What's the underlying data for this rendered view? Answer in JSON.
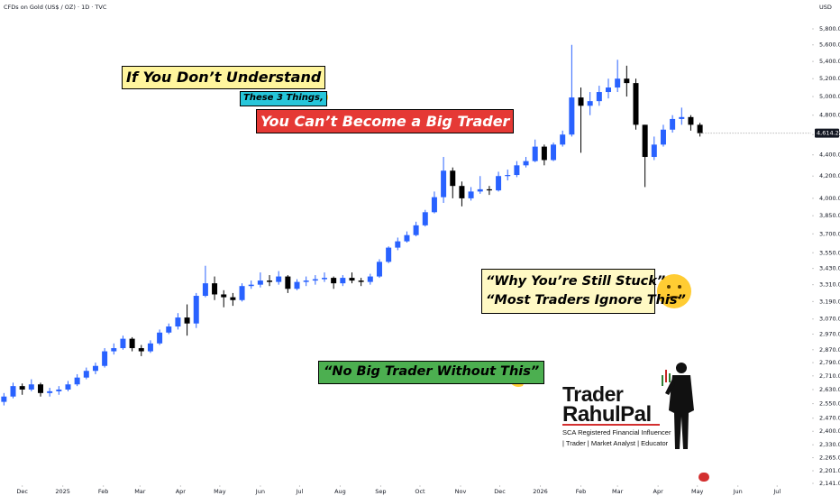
{
  "chart_data": {
    "type": "candlestick",
    "title": "CFDs on Gold (US$ / OZ) · 1D · TVC",
    "y_axis_label": "USD",
    "log_scale": true,
    "grid": false,
    "up_color": "#2962ff",
    "down_color": "#000000",
    "x": [
      -14,
      -7,
      0,
      7,
      14,
      21,
      28,
      35,
      42,
      49,
      56,
      63,
      70,
      77,
      84,
      91,
      98,
      105,
      112,
      119,
      126,
      133,
      140,
      147,
      154,
      161,
      168,
      175,
      182,
      189,
      196,
      203,
      210,
      217,
      224,
      231,
      238,
      245,
      252,
      259,
      266,
      273,
      280,
      287,
      294,
      301,
      308,
      315,
      322,
      329,
      336,
      343,
      350,
      357,
      364,
      371,
      378,
      385,
      392,
      399,
      406,
      413,
      420,
      427,
      434,
      441,
      448,
      455,
      462,
      469,
      476,
      483,
      490,
      497,
      504,
      511,
      518
    ],
    "open": [
      2560,
      2590,
      2650,
      2630,
      2660,
      2610,
      2620,
      2630,
      2660,
      2700,
      2740,
      2770,
      2860,
      2880,
      2940,
      2880,
      2860,
      2910,
      2980,
      3020,
      3080,
      3040,
      3230,
      3320,
      3240,
      3220,
      3200,
      3300,
      3310,
      3340,
      3330,
      3370,
      3280,
      3330,
      3340,
      3350,
      3360,
      3320,
      3360,
      3340,
      3330,
      3370,
      3480,
      3590,
      3640,
      3690,
      3770,
      3880,
      4010,
      4250,
      4110,
      4000,
      4060,
      4080,
      4070,
      4200,
      4210,
      4300,
      4340,
      4480,
      4350,
      4500,
      4600,
      4990,
      4900,
      4950,
      5050,
      5100,
      5200,
      5150,
      4700,
      4380,
      4500,
      4650,
      4760,
      4780,
      4700
    ],
    "high": [
      2610,
      2670,
      2665,
      2690,
      2670,
      2640,
      2650,
      2680,
      2720,
      2760,
      2790,
      2880,
      2910,
      2960,
      2950,
      2900,
      2930,
      3000,
      3040,
      3110,
      3170,
      3250,
      3450,
      3370,
      3270,
      3250,
      3320,
      3340,
      3400,
      3380,
      3410,
      3380,
      3350,
      3370,
      3380,
      3400,
      3370,
      3380,
      3400,
      3360,
      3390,
      3500,
      3600,
      3670,
      3720,
      3800,
      3900,
      4060,
      4380,
      4280,
      4150,
      4100,
      4200,
      4110,
      4240,
      4260,
      4340,
      4380,
      4550,
      4500,
      4520,
      4640,
      5600,
      5100,
      5050,
      5120,
      5200,
      5420,
      5350,
      5200,
      4700,
      4580,
      4700,
      4800,
      4880,
      4800,
      4720
    ],
    "low": [
      2540,
      2580,
      2600,
      2620,
      2590,
      2590,
      2600,
      2620,
      2650,
      2690,
      2720,
      2760,
      2840,
      2870,
      2860,
      2830,
      2850,
      2900,
      2970,
      3000,
      2960,
      3010,
      3220,
      3200,
      3150,
      3160,
      3190,
      3280,
      3290,
      3300,
      3310,
      3250,
      3270,
      3300,
      3310,
      3330,
      3280,
      3300,
      3320,
      3300,
      3310,
      3360,
      3470,
      3570,
      3630,
      3680,
      3760,
      3870,
      3960,
      4000,
      3930,
      3980,
      4040,
      4030,
      4060,
      4160,
      4190,
      4280,
      4330,
      4300,
      4340,
      4480,
      4580,
      4420,
      4800,
      4900,
      4980,
      5050,
      5000,
      4650,
      4100,
      4350,
      4480,
      4620,
      4700,
      4640,
      4580
    ],
    "close": [
      2590,
      2650,
      2630,
      2660,
      2610,
      2620,
      2630,
      2660,
      2700,
      2740,
      2770,
      2860,
      2880,
      2940,
      2880,
      2860,
      2910,
      2980,
      3020,
      3080,
      3040,
      3230,
      3320,
      3240,
      3220,
      3200,
      3300,
      3310,
      3340,
      3330,
      3370,
      3280,
      3330,
      3340,
      3350,
      3360,
      3320,
      3360,
      3340,
      3330,
      3370,
      3480,
      3590,
      3640,
      3690,
      3770,
      3880,
      4010,
      4250,
      4110,
      4000,
      4060,
      4080,
      4070,
      4200,
      4210,
      4300,
      4340,
      4480,
      4350,
      4500,
      4600,
      4990,
      4900,
      4950,
      5050,
      5100,
      5200,
      5150,
      4700,
      4380,
      4500,
      4650,
      4760,
      4780,
      4700,
      4614.23
    ],
    "last_value_label": "4,614.230",
    "xlim": [
      -17,
      603
    ],
    "xticks": [
      {
        "value": 0,
        "label": "Dec"
      },
      {
        "value": 31,
        "label": "2025"
      },
      {
        "value": 62,
        "label": "Feb"
      },
      {
        "value": 90,
        "label": "Mar"
      },
      {
        "value": 121,
        "label": "Apr"
      },
      {
        "value": 151,
        "label": "May"
      },
      {
        "value": 182,
        "label": "Jun"
      },
      {
        "value": 212,
        "label": "Jul"
      },
      {
        "value": 243,
        "label": "Aug"
      },
      {
        "value": 274,
        "label": "Sep"
      },
      {
        "value": 304,
        "label": "Oct"
      },
      {
        "value": 335,
        "label": "Nov"
      },
      {
        "value": 365,
        "label": "Dec"
      },
      {
        "value": 396,
        "label": "2026"
      },
      {
        "value": 427,
        "label": "Feb"
      },
      {
        "value": 455,
        "label": "Mar"
      },
      {
        "value": 486,
        "label": "Apr"
      },
      {
        "value": 516,
        "label": "May"
      },
      {
        "value": 547,
        "label": "Jun"
      },
      {
        "value": 577,
        "label": "Jul"
      }
    ],
    "ylim": [
      2141,
      5800
    ],
    "yticks": [
      {
        "value": 5800,
        "label": "5,800.000"
      },
      {
        "value": 5600,
        "label": "5,600.000"
      },
      {
        "value": 5400,
        "label": "5,400.000"
      },
      {
        "value": 5200,
        "label": "5,200.000"
      },
      {
        "value": 5000,
        "label": "5,000.000"
      },
      {
        "value": 4800,
        "label": "4,800.000"
      },
      {
        "value": 4600,
        "label": "4,600.000"
      },
      {
        "value": 4400,
        "label": "4,400.000"
      },
      {
        "value": 4200,
        "label": "4,200.000"
      },
      {
        "value": 4000,
        "label": "4,000.000"
      },
      {
        "value": 3850,
        "label": "3,850.000"
      },
      {
        "value": 3700,
        "label": "3,700.000"
      },
      {
        "value": 3550,
        "label": "3,550.000"
      },
      {
        "value": 3430,
        "label": "3,430.000"
      },
      {
        "value": 3310,
        "label": "3,310.000"
      },
      {
        "value": 3190,
        "label": "3,190.000"
      },
      {
        "value": 3070,
        "label": "3,070.000"
      },
      {
        "value": 2970,
        "label": "2,970.000"
      },
      {
        "value": 2870,
        "label": "2,870.000"
      },
      {
        "value": 2790,
        "label": "2,790.000"
      },
      {
        "value": 2710,
        "label": "2,710.000"
      },
      {
        "value": 2630,
        "label": "2,630.000"
      },
      {
        "value": 2550,
        "label": "2,550.000"
      },
      {
        "value": 2470,
        "label": "2,470.000"
      },
      {
        "value": 2400,
        "label": "2,400.000"
      },
      {
        "value": 2330,
        "label": "2,330.000"
      },
      {
        "value": 2265,
        "label": "2,265.000"
      },
      {
        "value": 2201,
        "label": "2,201.000"
      },
      {
        "value": 2141,
        "label": "2,141.000"
      }
    ],
    "annotations": [
      "If You Don’t Understand",
      "These 3 Things,",
      "You Can’t Become a Big Trader",
      "“Why You’re Still Stuck”",
      "“Most Traders Ignore This”",
      "“No Big Trader Without This”"
    ]
  },
  "logo": {
    "line1": "Trader",
    "line2": "RahulPal",
    "tagline1": "SCA Registered Financial Influencer",
    "tagline2": "| Trader | Market Analyst | Educator"
  }
}
